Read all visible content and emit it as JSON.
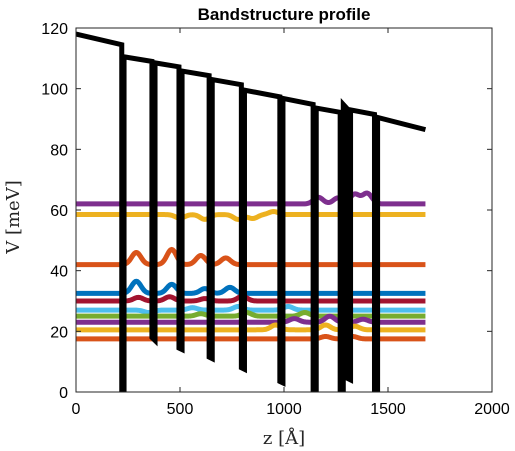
{
  "chart_data": {
    "type": "line",
    "title": "Bandstructure profile",
    "xlabel": "z [Å]",
    "ylabel": "V [meV]",
    "xlim": [
      0,
      2000
    ],
    "ylim": [
      0,
      120
    ],
    "xticks": [
      "0",
      "500",
      "1000",
      "1500",
      "2000"
    ],
    "yticks": [
      "0",
      "20",
      "40",
      "60",
      "80",
      "100",
      "120"
    ],
    "grid": false,
    "legend": "none",
    "potential": {
      "color": "#000000",
      "x": [
        0,
        220,
        220,
        231,
        231,
        365,
        365,
        380,
        380,
        495,
        495,
        510,
        510,
        640,
        640,
        655,
        655,
        795,
        795,
        810,
        810,
        980,
        980,
        995,
        995,
        1140,
        1140,
        1155,
        1155,
        1270,
        1270,
        1285,
        1285,
        1305,
        1305,
        1320,
        1320,
        1435,
        1435,
        1450,
        1450,
        1680
      ],
      "y": [
        118,
        114.5,
        0,
        -1,
        110.5,
        109,
        18,
        17,
        108.5,
        107.2,
        14.5,
        14,
        105.8,
        104.3,
        11.5,
        11,
        103,
        101.3,
        8,
        7.5,
        99.5,
        97.3,
        3.5,
        3,
        96.8,
        94.8,
        -1,
        -1,
        93.6,
        92.2,
        -2,
        -2,
        94.8,
        93.3,
        4.5,
        4,
        93,
        91.5,
        -2,
        -2,
        90.5,
        86.5
      ]
    },
    "series": [
      {
        "color": "#7E2F8E",
        "level": 62,
        "bumps": [
          {
            "x": 1165,
            "a": 2.2
          },
          {
            "x": 1260,
            "a": 2.0
          },
          {
            "x": 1340,
            "a": 3.2
          },
          {
            "x": 1400,
            "a": 3.5
          }
        ]
      },
      {
        "color": "#EDB120",
        "level": 58.5,
        "bumps": [
          {
            "x": 500,
            "a": -1.2
          },
          {
            "x": 620,
            "a": -1.6
          },
          {
            "x": 780,
            "a": -1.6
          },
          {
            "x": 850,
            "a": -1.3
          },
          {
            "x": 950,
            "a": 1.0
          }
        ]
      },
      {
        "color": "#D95319",
        "level": 42,
        "bumps": [
          {
            "x": 290,
            "a": 4.0
          },
          {
            "x": 460,
            "a": 5.0
          },
          {
            "x": 600,
            "a": 3.0
          },
          {
            "x": 720,
            "a": 2.2
          }
        ]
      },
      {
        "color": "#0072BD",
        "level": 32.5,
        "bumps": [
          {
            "x": 290,
            "a": 4.0
          },
          {
            "x": 460,
            "a": 3.0
          },
          {
            "x": 620,
            "a": 1.6
          },
          {
            "x": 740,
            "a": 2.0
          }
        ]
      },
      {
        "color": "#A2142F",
        "level": 30,
        "bumps": [
          {
            "x": 300,
            "a": 1.2
          },
          {
            "x": 450,
            "a": 1.4
          },
          {
            "x": 620,
            "a": 0.8
          },
          {
            "x": 800,
            "a": 1.6
          }
        ]
      },
      {
        "color": "#4DBEEE",
        "level": 27,
        "bumps": [
          {
            "x": 350,
            "a": -0.8
          },
          {
            "x": 560,
            "a": 0.8
          },
          {
            "x": 780,
            "a": 1.2
          },
          {
            "x": 1020,
            "a": 1.2
          }
        ]
      },
      {
        "color": "#77AC30",
        "level": 25,
        "bumps": [
          {
            "x": 600,
            "a": 0.8
          },
          {
            "x": 820,
            "a": 1.2
          },
          {
            "x": 1100,
            "a": 1.2
          }
        ]
      },
      {
        "color": "#7E2F8E",
        "level": 23,
        "bumps": [
          {
            "x": 1050,
            "a": 1.2
          },
          {
            "x": 1220,
            "a": 2.0
          },
          {
            "x": 1380,
            "a": 1.0
          }
        ]
      },
      {
        "color": "#EDB120",
        "level": 20.5,
        "bumps": [
          {
            "x": 960,
            "a": 1.6
          },
          {
            "x": 1200,
            "a": 1.6
          },
          {
            "x": 1340,
            "a": 1.2
          }
        ]
      },
      {
        "color": "#D95319",
        "level": 17.5,
        "bumps": [
          {
            "x": 1200,
            "a": 0.8
          },
          {
            "x": 1330,
            "a": 0.8
          }
        ]
      }
    ]
  }
}
